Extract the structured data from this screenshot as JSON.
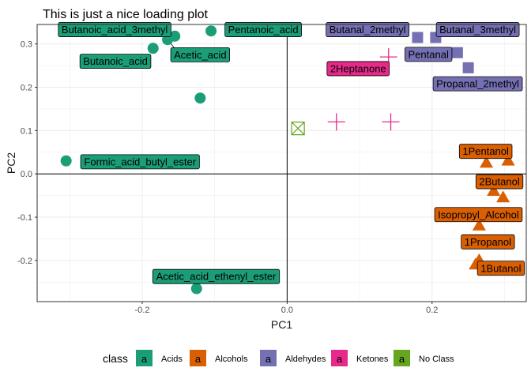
{
  "chart_data": {
    "type": "scatter",
    "title": "This is just a nice loading plot",
    "xlabel": "PC1",
    "ylabel": "PC2",
    "xlim": [
      -0.345,
      0.33
    ],
    "ylim": [
      -0.295,
      0.345
    ],
    "x_ticks": [
      -0.2,
      0.0,
      0.2
    ],
    "x_tick_labels": [
      "-0.2",
      "0.0",
      "0.2"
    ],
    "y_ticks": [
      -0.2,
      -0.1,
      0.0,
      0.1,
      0.2,
      0.3
    ],
    "y_tick_labels": [
      "-0.2",
      "-0.1",
      "0.0",
      "0.1",
      "0.2",
      "0.3"
    ],
    "grid": true,
    "reference_lines": {
      "x": 0,
      "y": 0
    },
    "legend": {
      "title": "class",
      "position": "bottom",
      "key_glyph": "a",
      "entries": [
        {
          "name": "Acids",
          "color": "#1B9E77"
        },
        {
          "name": "Alcohols",
          "color": "#D95F02"
        },
        {
          "name": "Aldehydes",
          "color": "#7570B3"
        },
        {
          "name": "Ketones",
          "color": "#E7298A"
        },
        {
          "name": "No Class",
          "color": "#66A61E"
        }
      ]
    },
    "series": [
      {
        "name": "Acids",
        "color": "#1B9E77",
        "shape": "circle",
        "points": [
          {
            "x": -0.155,
            "y": 0.318,
            "label": "Butanoic_acid_3methyl"
          },
          {
            "x": -0.105,
            "y": 0.33,
            "label": "Pentanoic_acid"
          },
          {
            "x": -0.185,
            "y": 0.29,
            "label": "Butanoic_acid"
          },
          {
            "x": -0.165,
            "y": 0.31,
            "label": "Acetic_acid"
          },
          {
            "x": -0.12,
            "y": 0.175,
            "label": ""
          },
          {
            "x": -0.305,
            "y": 0.03,
            "label": "Formic_acid_butyl_ester"
          },
          {
            "x": -0.125,
            "y": -0.265,
            "label": "Acetic_acid_ethenyl_ester"
          }
        ]
      },
      {
        "name": "Alcohols",
        "color": "#D95F02",
        "shape": "triangle",
        "points": [
          {
            "x": 0.305,
            "y": 0.03,
            "label": "1Pentanol"
          },
          {
            "x": 0.275,
            "y": 0.025,
            "label": ""
          },
          {
            "x": 0.285,
            "y": -0.04,
            "label": "2Butanol"
          },
          {
            "x": 0.298,
            "y": -0.055,
            "label": ""
          },
          {
            "x": 0.265,
            "y": -0.12,
            "label": "Isopropyl_Alcohol"
          },
          {
            "x": 0.265,
            "y": -0.2,
            "label": "1Propanol"
          },
          {
            "x": 0.26,
            "y": -0.21,
            "label": "1Butanol"
          }
        ]
      },
      {
        "name": "Aldehydes",
        "color": "#7570B3",
        "shape": "square",
        "points": [
          {
            "x": 0.18,
            "y": 0.315,
            "label": "Butanal_2methyl"
          },
          {
            "x": 0.205,
            "y": 0.315,
            "label": "Butanal_3methyl"
          },
          {
            "x": 0.235,
            "y": 0.28,
            "label": "Pentanal"
          },
          {
            "x": 0.25,
            "y": 0.245,
            "label": "Propanal_2methyl"
          }
        ]
      },
      {
        "name": "Ketones",
        "color": "#E7298A",
        "shape": "cross",
        "points": [
          {
            "x": 0.14,
            "y": 0.27,
            "label": "2Heptanone"
          },
          {
            "x": 0.068,
            "y": 0.12,
            "label": ""
          },
          {
            "x": 0.143,
            "y": 0.12,
            "label": ""
          }
        ]
      },
      {
        "name": "No Class",
        "color": "#66A61E",
        "shape": "square-x",
        "points": [
          {
            "x": 0.015,
            "y": 0.105,
            "label": ""
          }
        ]
      }
    ],
    "labels": [
      {
        "text": "Butanoic_acid_3methyl",
        "series": "Acids",
        "x": -0.238,
        "y": 0.333
      },
      {
        "text": "Pentanoic_acid",
        "series": "Acids",
        "x": -0.033,
        "y": 0.333
      },
      {
        "text": "Butanoic_acid",
        "series": "Acids",
        "x": -0.237,
        "y": 0.26
      },
      {
        "text": "Acetic_acid",
        "series": "Acids",
        "x": -0.12,
        "y": 0.275
      },
      {
        "text": "Formic_acid_butyl_ester",
        "series": "Acids",
        "x": -0.203,
        "y": 0.028
      },
      {
        "text": "Acetic_acid_ethenyl_ester",
        "series": "Acids",
        "x": -0.098,
        "y": -0.237
      },
      {
        "text": "Butanal_2methyl",
        "series": "Aldehydes",
        "x": 0.111,
        "y": 0.333
      },
      {
        "text": "Butanal_3methyl",
        "series": "Aldehydes",
        "x": 0.263,
        "y": 0.333
      },
      {
        "text": "Pentanal",
        "series": "Aldehydes",
        "x": 0.195,
        "y": 0.276
      },
      {
        "text": "Propanal_2methyl",
        "series": "Aldehydes",
        "x": 0.263,
        "y": 0.208
      },
      {
        "text": "2Heptanone",
        "series": "Ketones",
        "x": 0.098,
        "y": 0.243
      },
      {
        "text": "1Pentanol",
        "series": "Alcohols",
        "x": 0.274,
        "y": 0.052
      },
      {
        "text": "2Butanol",
        "series": "Alcohols",
        "x": 0.293,
        "y": -0.018
      },
      {
        "text": "Isopropyl_Alcohol",
        "series": "Alcohols",
        "x": 0.264,
        "y": -0.094
      },
      {
        "text": "1Propanol",
        "series": "Alcohols",
        "x": 0.277,
        "y": -0.157
      },
      {
        "text": "1Butanol",
        "series": "Alcohols",
        "x": 0.295,
        "y": -0.218
      }
    ],
    "leader_lines": [
      {
        "from": [
          -0.165,
          0.31
        ],
        "to": [
          -0.148,
          0.275
        ]
      }
    ]
  }
}
